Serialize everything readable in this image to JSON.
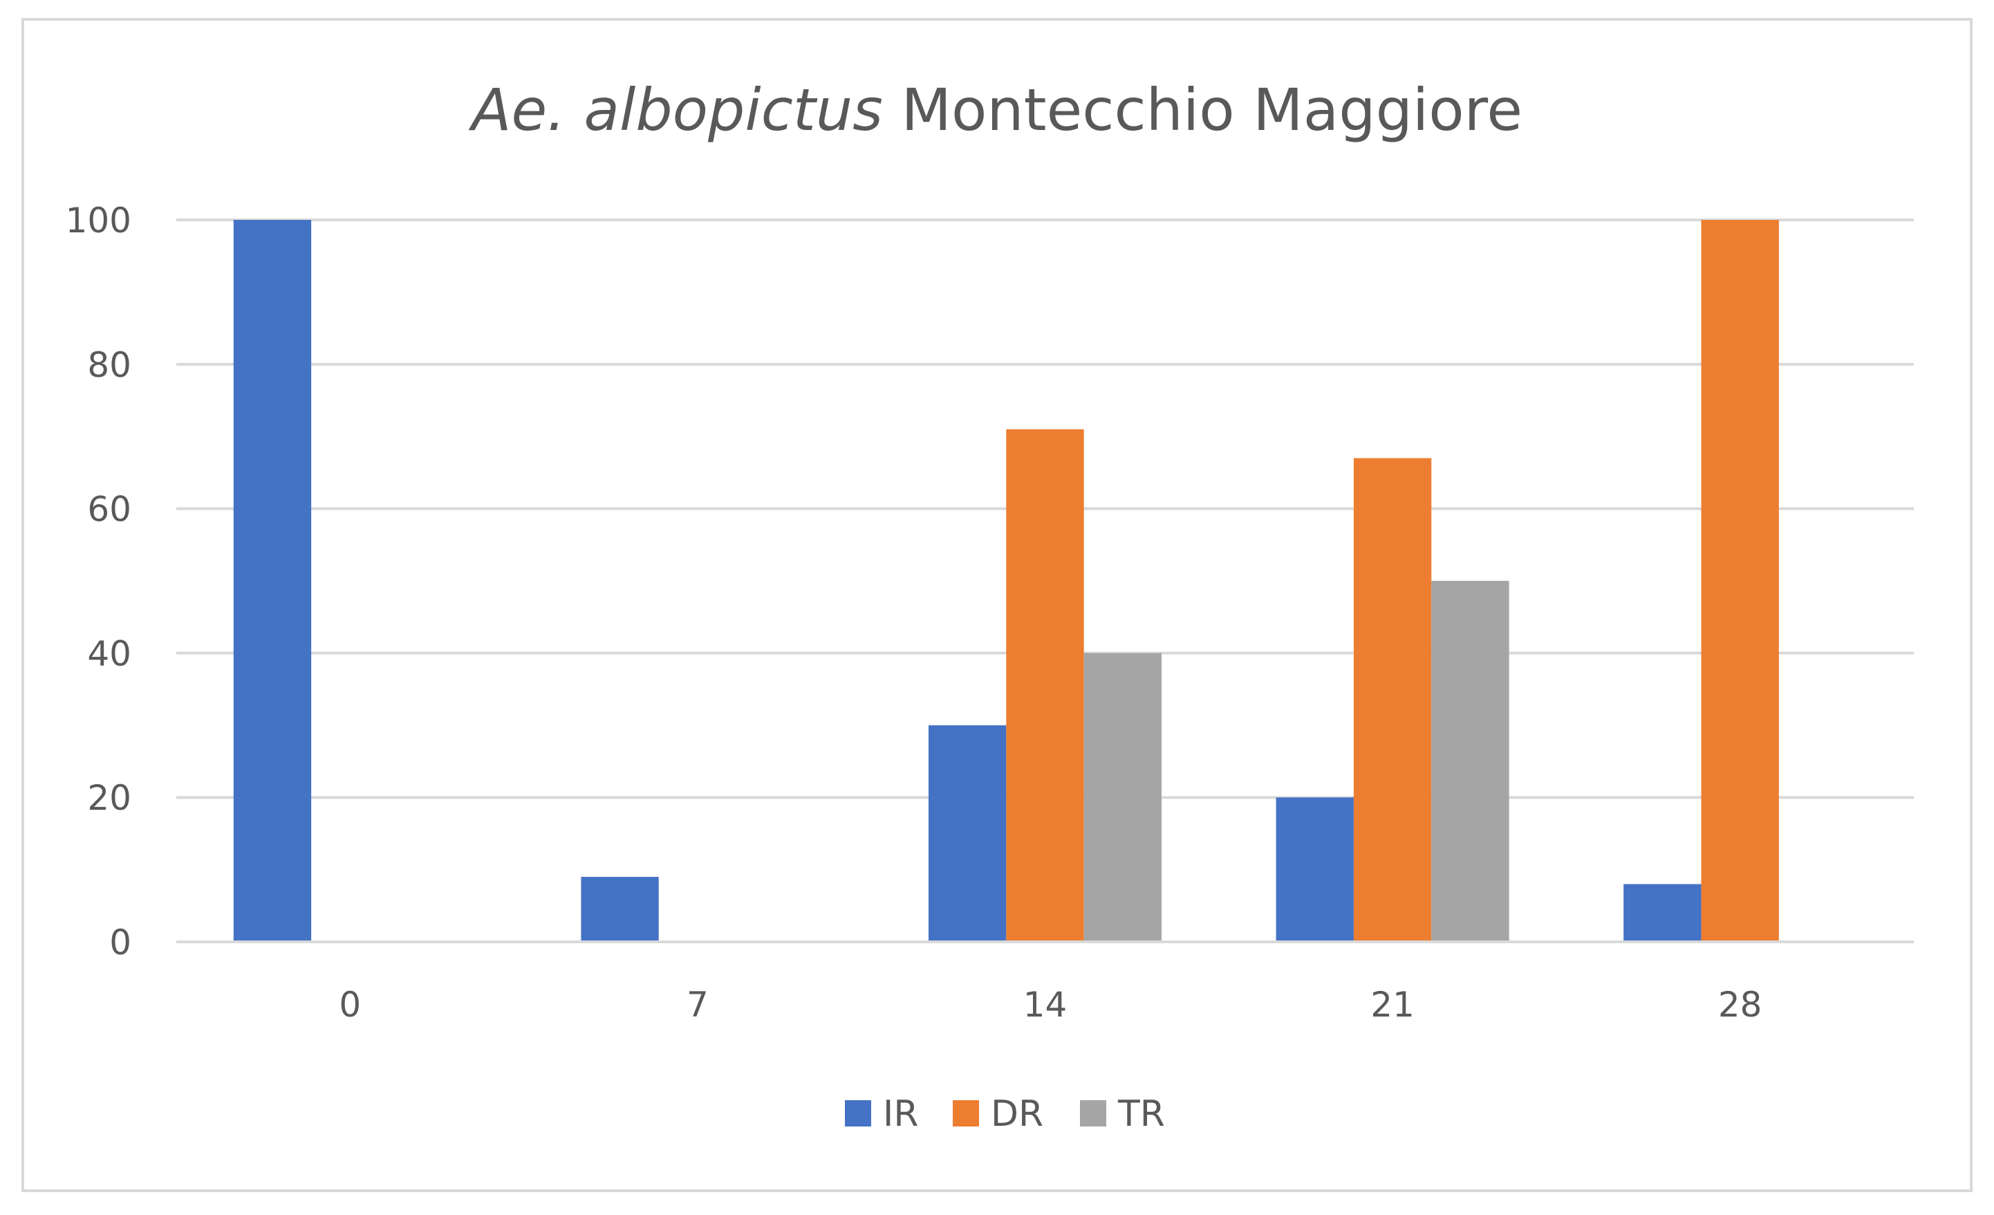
{
  "chart_data": {
    "type": "bar",
    "title_italic": "Ae. albopictus",
    "title_rest": " Montecchio Maggiore",
    "categories": [
      "0",
      "7",
      "14",
      "21",
      "28"
    ],
    "series": [
      {
        "name": "IR",
        "color": "#4472C4",
        "values": [
          100,
          9,
          30,
          20,
          8
        ]
      },
      {
        "name": "DR",
        "color": "#ED7D31",
        "values": [
          0,
          0,
          71,
          67,
          100
        ]
      },
      {
        "name": "TR",
        "color": "#A5A5A5",
        "values": [
          0,
          0,
          40,
          50,
          0
        ]
      }
    ],
    "ylim": [
      0,
      100
    ],
    "yticks": [
      "0",
      "20",
      "40",
      "60",
      "80",
      "100"
    ],
    "grid": true,
    "legend_position": "bottom"
  }
}
